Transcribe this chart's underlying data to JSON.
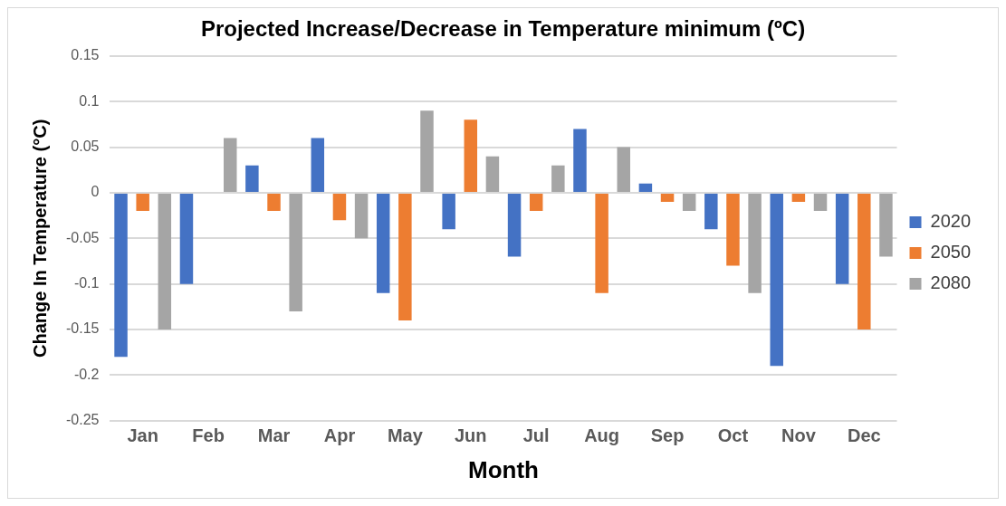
{
  "chart_data": {
    "type": "bar",
    "title": "Projected Increase/Decrease in Temperature minimum (ºC)",
    "xlabel": "Month",
    "ylabel": "Change In Temperature (°C)",
    "categories": [
      "Jan",
      "Feb",
      "Mar",
      "Apr",
      "May",
      "Jun",
      "Jul",
      "Aug",
      "Sep",
      "Oct",
      "Nov",
      "Dec"
    ],
    "series": [
      {
        "name": "2020",
        "color": "#4472c4",
        "values": [
          -0.18,
          -0.1,
          0.03,
          0.06,
          -0.11,
          -0.04,
          -0.07,
          0.07,
          0.01,
          -0.04,
          -0.19,
          -0.1
        ]
      },
      {
        "name": "2050",
        "color": "#ed7d31",
        "values": [
          -0.02,
          0,
          -0.02,
          -0.03,
          -0.14,
          0.08,
          -0.02,
          -0.11,
          -0.01,
          -0.08,
          -0.01,
          -0.15
        ]
      },
      {
        "name": "2080",
        "color": "#a5a5a5",
        "values": [
          -0.15,
          0.06,
          -0.13,
          -0.05,
          0.09,
          0.04,
          0.03,
          0.05,
          -0.02,
          -0.11,
          -0.02,
          -0.07
        ]
      }
    ],
    "ylim": [
      -0.25,
      0.15
    ],
    "yticks": [
      -0.25,
      -0.2,
      -0.15,
      -0.1,
      -0.05,
      0,
      0.05,
      0.1,
      0.15
    ],
    "grid": "y",
    "legend": "right"
  }
}
